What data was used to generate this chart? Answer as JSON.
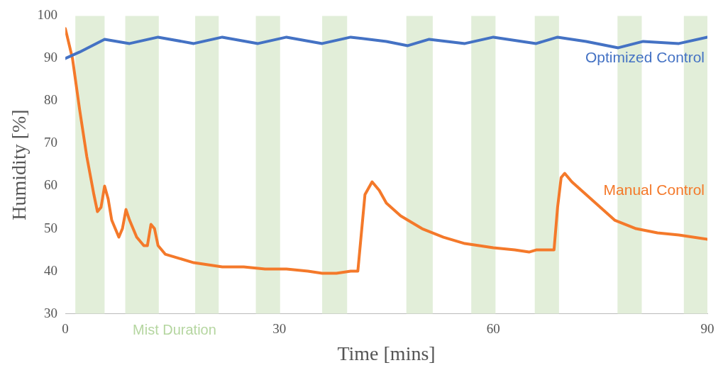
{
  "chart_data": {
    "type": "line",
    "xlabel": "Time [mins]",
    "ylabel": "Humidity [%]",
    "xlim": [
      0,
      90
    ],
    "xticks": [
      0,
      30,
      60,
      90
    ],
    "ylim": [
      30,
      100
    ],
    "yticks": [
      30,
      40,
      50,
      60,
      70,
      80,
      90,
      100
    ],
    "grid": false,
    "legend": false,
    "marker": "none",
    "line_style": "solid",
    "annotations": [
      "Mist Duration"
    ],
    "bands": [
      {
        "axis": "x",
        "from": 1.4,
        "to": 5.5,
        "color": "#e2eed9"
      },
      {
        "axis": "x",
        "from": 8.4,
        "to": 13.1,
        "color": "#e2eed9"
      },
      {
        "axis": "x",
        "from": 18.2,
        "to": 21.5,
        "color": "#e2eed9"
      },
      {
        "axis": "x",
        "from": 26.7,
        "to": 30.1,
        "color": "#e2eed9"
      },
      {
        "axis": "x",
        "from": 36,
        "to": 39.5,
        "color": "#e2eed9"
      },
      {
        "axis": "x",
        "from": 47.8,
        "to": 51.5,
        "color": "#e2eed9"
      },
      {
        "axis": "x",
        "from": 56.9,
        "to": 60.3,
        "color": "#e2eed9"
      },
      {
        "axis": "x",
        "from": 65.8,
        "to": 69.2,
        "color": "#e2eed9"
      },
      {
        "axis": "x",
        "from": 77.4,
        "to": 80.8,
        "color": "#e2eed9"
      },
      {
        "axis": "x",
        "from": 86.7,
        "to": 90,
        "color": "#e2eed9"
      }
    ],
    "series": [
      {
        "name": "Optimized Control",
        "color": "#4472c4",
        "x": [
          0,
          2,
          5.5,
          9,
          13,
          18,
          22,
          27,
          31,
          36,
          40,
          45,
          48,
          51,
          56,
          60,
          66,
          69,
          73,
          77.5,
          81,
          86,
          90
        ],
        "values": [
          90,
          91.5,
          94.5,
          93.5,
          95,
          93.5,
          95,
          93.5,
          95,
          93.5,
          95,
          94,
          93,
          94.5,
          93.5,
          95,
          93.5,
          95,
          94,
          92.5,
          94,
          93.5,
          95
        ]
      },
      {
        "name": "Manual Control",
        "color": "#f4792a",
        "x": [
          0,
          1,
          2,
          3,
          4,
          4.5,
          5,
          5.5,
          6,
          6.5,
          7,
          7.5,
          8,
          8.5,
          9,
          10,
          11,
          11.5,
          12,
          12.5,
          13,
          14,
          16,
          18,
          20,
          22,
          25,
          28,
          31,
          34,
          36,
          38,
          40,
          41,
          42,
          43,
          44,
          45,
          47,
          50,
          53,
          56,
          60,
          63,
          65,
          66,
          68.5,
          69,
          69.5,
          70,
          71,
          73,
          75,
          77,
          80,
          83,
          86,
          90
        ],
        "values": [
          97,
          90,
          78,
          67,
          58,
          54,
          55,
          60,
          57,
          52,
          50,
          48,
          50,
          54.5,
          52,
          48,
          46,
          46,
          51,
          50,
          46,
          44,
          43,
          42,
          41.5,
          41,
          41,
          40.5,
          40.5,
          40,
          39.5,
          39.5,
          40,
          40,
          58,
          61,
          59,
          56,
          53,
          50,
          48,
          46.5,
          45.5,
          45,
          44.5,
          45,
          45,
          55,
          62,
          63,
          61,
          58,
          55,
          52,
          50,
          49,
          48.5,
          47.5
        ]
      }
    ]
  }
}
